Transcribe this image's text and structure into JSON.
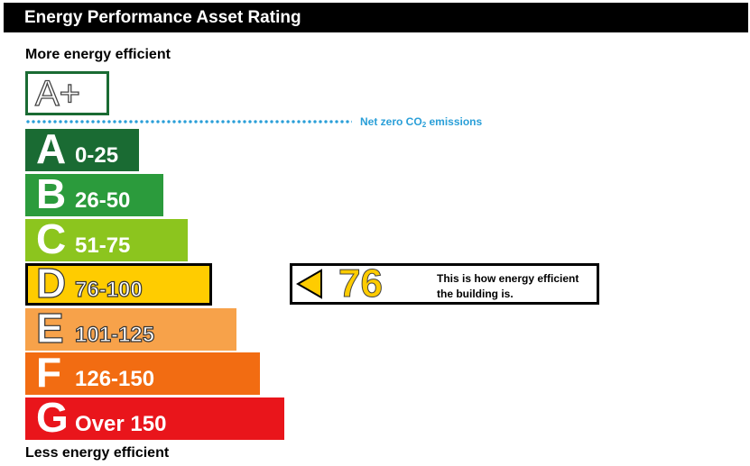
{
  "header": {
    "title": "Energy Performance Asset Rating"
  },
  "captions": {
    "top": "More energy efficient",
    "bottom": "Less energy efficient"
  },
  "aplus": {
    "label": "A+",
    "border_color": "#1a6b33"
  },
  "net_zero": {
    "label_prefix": "Net zero CO",
    "label_sub": "2",
    "label_suffix": " emissions",
    "color": "#2a9fd8"
  },
  "bands": [
    {
      "letter": "A",
      "range": "0-25",
      "color": "#1a6b33"
    },
    {
      "letter": "B",
      "range": "26-50",
      "color": "#2b9b3c"
    },
    {
      "letter": "C",
      "range": "51-75",
      "color": "#8cc51e"
    },
    {
      "letter": "D",
      "range": "76-100",
      "color": "#ffcc00"
    },
    {
      "letter": "E",
      "range": "101-125",
      "color": "#f7a24a"
    },
    {
      "letter": "F",
      "range": "126-150",
      "color": "#f26c12"
    },
    {
      "letter": "G",
      "range": "Over 150",
      "color": "#e9151b"
    }
  ],
  "current": {
    "band": "D",
    "score": "76",
    "arrow_color": "#ffcc00",
    "text_line1": "This is how energy efficient",
    "text_line2": "the building is."
  }
}
